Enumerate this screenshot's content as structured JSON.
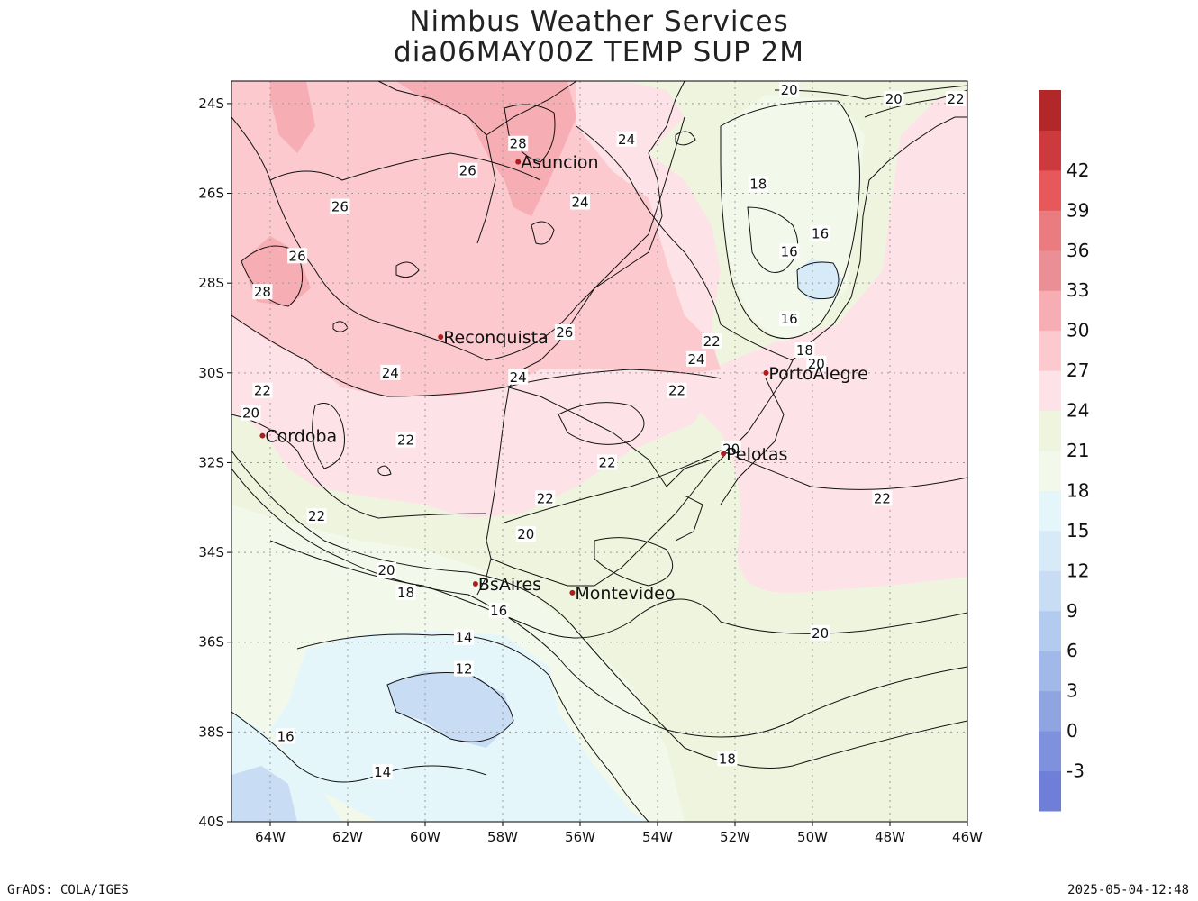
{
  "title": {
    "line1": "Nimbus Weather Services",
    "line2": "dia06MAY00Z TEMP SUP 2M"
  },
  "map": {
    "lat_ticks": [
      "24S",
      "26S",
      "28S",
      "30S",
      "32S",
      "34S",
      "36S",
      "38S",
      "40S"
    ],
    "lon_ticks": [
      "64W",
      "62W",
      "60W",
      "58W",
      "56W",
      "54W",
      "52W",
      "50W",
      "48W",
      "46W"
    ],
    "lon_range": [
      -65,
      -46
    ],
    "lat_range": [
      -40,
      -23.5
    ],
    "cities": [
      {
        "name": "Asuncion",
        "lon": -57.6,
        "lat": -25.3
      },
      {
        "name": "Reconquista",
        "lon": -59.6,
        "lat": -29.2
      },
      {
        "name": "Cordoba",
        "lon": -64.2,
        "lat": -31.4
      },
      {
        "name": "PortoAlegre",
        "lon": -51.2,
        "lat": -30.0
      },
      {
        "name": "Pelotas",
        "lon": -52.3,
        "lat": -31.8
      },
      {
        "name": "BsAires",
        "lon": -58.7,
        "lat": -34.7
      },
      {
        "name": "Montevideo",
        "lon": -56.2,
        "lat": -34.9
      }
    ],
    "contour_labels": [
      {
        "t": "20",
        "lon": -50.6,
        "lat": -23.7
      },
      {
        "t": "20",
        "lon": -47.9,
        "lat": -23.9
      },
      {
        "t": "22",
        "lon": -46.3,
        "lat": -23.9
      },
      {
        "t": "24",
        "lon": -54.8,
        "lat": -24.8
      },
      {
        "t": "28",
        "lon": -57.6,
        "lat": -24.9
      },
      {
        "t": "26",
        "lon": -58.9,
        "lat": -25.5
      },
      {
        "t": "26",
        "lon": -62.2,
        "lat": -26.3
      },
      {
        "t": "24",
        "lon": -56.0,
        "lat": -26.2
      },
      {
        "t": "18",
        "lon": -51.4,
        "lat": -25.8
      },
      {
        "t": "16",
        "lon": -49.8,
        "lat": -26.9
      },
      {
        "t": "16",
        "lon": -50.6,
        "lat": -27.3
      },
      {
        "t": "26",
        "lon": -63.3,
        "lat": -27.4
      },
      {
        "t": "28",
        "lon": -64.2,
        "lat": -28.2
      },
      {
        "t": "16",
        "lon": -50.6,
        "lat": -28.8
      },
      {
        "t": "26",
        "lon": -56.4,
        "lat": -29.1
      },
      {
        "t": "22",
        "lon": -52.6,
        "lat": -29.3
      },
      {
        "t": "24",
        "lon": -53.0,
        "lat": -29.7
      },
      {
        "t": "18",
        "lon": -50.2,
        "lat": -29.5
      },
      {
        "t": "20",
        "lon": -49.9,
        "lat": -29.8
      },
      {
        "t": "24",
        "lon": -60.9,
        "lat": -30.0
      },
      {
        "t": "24",
        "lon": -57.6,
        "lat": -30.1
      },
      {
        "t": "22",
        "lon": -53.5,
        "lat": -30.4
      },
      {
        "t": "22",
        "lon": -64.2,
        "lat": -30.4
      },
      {
        "t": "20",
        "lon": -64.5,
        "lat": -30.9
      },
      {
        "t": "22",
        "lon": -60.5,
        "lat": -31.5
      },
      {
        "t": "20",
        "lon": -52.1,
        "lat": -31.7
      },
      {
        "t": "22",
        "lon": -55.3,
        "lat": -32.0
      },
      {
        "t": "22",
        "lon": -56.9,
        "lat": -32.8
      },
      {
        "t": "22",
        "lon": -48.2,
        "lat": -32.8
      },
      {
        "t": "22",
        "lon": -62.8,
        "lat": -33.2
      },
      {
        "t": "20",
        "lon": -57.4,
        "lat": -33.6
      },
      {
        "t": "20",
        "lon": -61.0,
        "lat": -34.4
      },
      {
        "t": "18",
        "lon": -60.5,
        "lat": -34.9
      },
      {
        "t": "16",
        "lon": -58.1,
        "lat": -35.3
      },
      {
        "t": "20",
        "lon": -49.8,
        "lat": -35.8
      },
      {
        "t": "14",
        "lon": -59.0,
        "lat": -35.9
      },
      {
        "t": "12",
        "lon": -59.0,
        "lat": -36.6
      },
      {
        "t": "16",
        "lon": -63.6,
        "lat": -38.1
      },
      {
        "t": "18",
        "lon": -52.2,
        "lat": -38.6
      },
      {
        "t": "14",
        "lon": -61.1,
        "lat": -38.9
      }
    ]
  },
  "colorbar": {
    "colors": [
      "#6f7fd8",
      "#7d91dc",
      "#8ea5e2",
      "#a0b9e8",
      "#b3cbee",
      "#c8ddf3",
      "#d6eaf7",
      "#e5f6fb",
      "#f2f9ea",
      "#eef4dd",
      "#fde3e7",
      "#fbc9ce",
      "#f6adb3",
      "#e98f95",
      "#ea7b7f",
      "#e6585a",
      "#cc3a3d",
      "#b22828"
    ],
    "labels": [
      "-3",
      "0",
      "3",
      "6",
      "9",
      "12",
      "15",
      "18",
      "21",
      "24",
      "27",
      "30",
      "33",
      "36",
      "39",
      "42"
    ]
  },
  "footer": {
    "left": "GrADS: COLA/IGES",
    "right": "2025-05-04-12:48"
  }
}
